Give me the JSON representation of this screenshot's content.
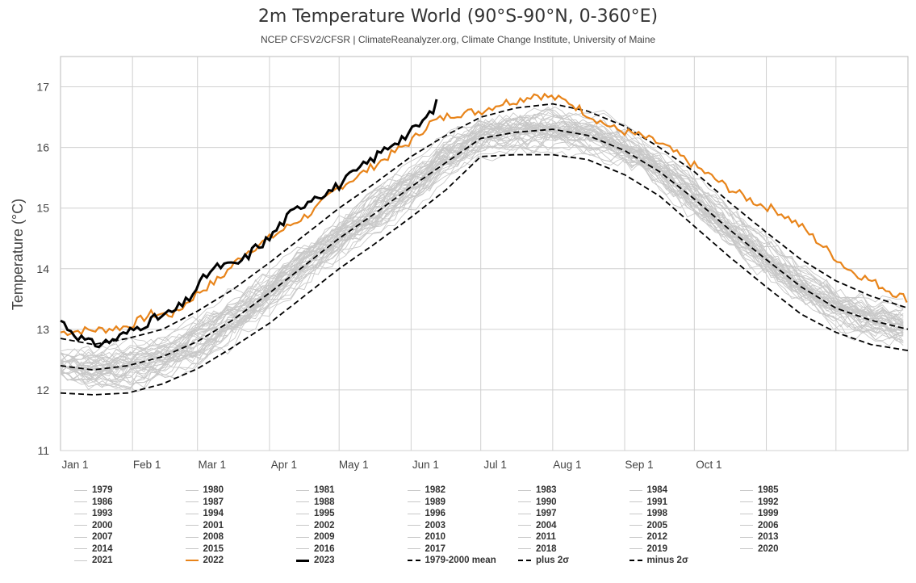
{
  "chart_data": {
    "type": "line",
    "title": "2m Temperature World (90°S-90°N, 0-360°E)",
    "subtitle": "NCEP CFSV2/CFSR | ClimateReanalyzer.org, Climate Change Institute, University of Maine",
    "ylabel": "Temperature (°C)",
    "xlabel": "",
    "ylim": [
      11,
      17.5
    ],
    "xlim": [
      1,
      366
    ],
    "yticks": [
      11,
      12,
      13,
      14,
      15,
      16,
      17
    ],
    "xticks": [
      {
        "day": 1,
        "label": "Jan 1"
      },
      {
        "day": 32,
        "label": "Feb 1"
      },
      {
        "day": 60,
        "label": "Mar 1"
      },
      {
        "day": 91,
        "label": "Apr 1"
      },
      {
        "day": 121,
        "label": "May 1"
      },
      {
        "day": 152,
        "label": "Jun 1"
      },
      {
        "day": 182,
        "label": "Jul 1"
      },
      {
        "day": 213,
        "label": "Aug 1"
      },
      {
        "day": 244,
        "label": "Sep 1"
      },
      {
        "day": 274,
        "label": "Oct 1"
      }
    ],
    "grid": true,
    "legend_position": "bottom",
    "colors": {
      "historical": "#c8c8c8",
      "y2022": "#e8841a",
      "y2023": "#000000",
      "stats": "#000000"
    },
    "historical_years": [
      "1979",
      "1980",
      "1981",
      "1982",
      "1983",
      "1984",
      "1985",
      "1986",
      "1987",
      "1988",
      "1989",
      "1990",
      "1991",
      "1992",
      "1993",
      "1994",
      "1995",
      "1996",
      "1997",
      "1998",
      "1999",
      "2000",
      "2001",
      "2002",
      "2003",
      "2004",
      "2005",
      "2006",
      "2007",
      "2008",
      "2009",
      "2010",
      "2011",
      "2012",
      "2013",
      "2014",
      "2015",
      "2016",
      "2017",
      "2018",
      "2019",
      "2020",
      "2021"
    ],
    "series": [
      {
        "name": "1979-2000 mean",
        "style": "dashed",
        "x": [
          1,
          15,
          30,
          45,
          60,
          75,
          91,
          106,
          121,
          136,
          152,
          167,
          182,
          197,
          213,
          228,
          244,
          259,
          274,
          289,
          305,
          320,
          335,
          350,
          366
        ],
        "y": [
          12.4,
          12.33,
          12.4,
          12.55,
          12.8,
          13.15,
          13.6,
          14.05,
          14.5,
          14.9,
          15.35,
          15.75,
          16.15,
          16.25,
          16.3,
          16.2,
          15.95,
          15.6,
          15.15,
          14.65,
          14.15,
          13.7,
          13.35,
          13.15,
          13.0
        ]
      },
      {
        "name": "plus 2σ",
        "style": "dashed",
        "x": [
          1,
          15,
          30,
          45,
          60,
          75,
          91,
          106,
          121,
          136,
          152,
          167,
          182,
          197,
          213,
          228,
          244,
          259,
          274,
          289,
          305,
          320,
          335,
          350,
          366
        ],
        "y": [
          12.85,
          12.75,
          12.85,
          13.0,
          13.3,
          13.65,
          14.1,
          14.55,
          15.0,
          15.4,
          15.85,
          16.2,
          16.5,
          16.65,
          16.72,
          16.6,
          16.35,
          16.0,
          15.6,
          15.1,
          14.6,
          14.15,
          13.8,
          13.55,
          13.35
        ]
      },
      {
        "name": "minus 2σ",
        "style": "dashed",
        "x": [
          1,
          15,
          30,
          45,
          60,
          75,
          91,
          106,
          121,
          136,
          152,
          167,
          182,
          197,
          213,
          228,
          244,
          259,
          274,
          289,
          305,
          320,
          335,
          350,
          366
        ],
        "y": [
          11.95,
          11.92,
          11.95,
          12.1,
          12.35,
          12.7,
          13.1,
          13.55,
          14.0,
          14.4,
          14.85,
          15.3,
          15.85,
          15.88,
          15.88,
          15.8,
          15.55,
          15.2,
          14.7,
          14.2,
          13.7,
          13.25,
          12.95,
          12.75,
          12.65
        ]
      },
      {
        "name": "2022",
        "style": "orange",
        "x": [
          1,
          10,
          20,
          30,
          40,
          50,
          60,
          70,
          80,
          91,
          100,
          110,
          121,
          130,
          140,
          152,
          160,
          170,
          182,
          190,
          200,
          205,
          213,
          220,
          230,
          240,
          250,
          260,
          270,
          280,
          290,
          300,
          310,
          320,
          330,
          340,
          350,
          360,
          366
        ],
        "y": [
          12.95,
          12.98,
          13.0,
          13.05,
          13.25,
          13.25,
          13.6,
          13.85,
          14.25,
          14.5,
          14.72,
          14.95,
          15.35,
          15.55,
          15.8,
          16.1,
          16.4,
          16.55,
          16.6,
          16.72,
          16.8,
          16.88,
          16.82,
          16.75,
          16.5,
          16.3,
          16.2,
          16.05,
          15.8,
          15.55,
          15.3,
          15.1,
          14.95,
          14.7,
          14.35,
          14.0,
          13.8,
          13.6,
          13.5
        ]
      },
      {
        "name": "2023",
        "style": "black",
        "x": [
          1,
          5,
          10,
          15,
          20,
          25,
          30,
          35,
          40,
          45,
          50,
          55,
          60,
          65,
          70,
          75,
          80,
          85,
          91,
          95,
          100,
          105,
          110,
          115,
          120,
          125,
          130,
          135,
          140,
          145,
          150,
          155,
          160,
          164
        ],
        "y": [
          13.15,
          13.0,
          12.85,
          12.75,
          12.78,
          12.85,
          12.95,
          13.05,
          13.15,
          13.22,
          13.3,
          13.45,
          13.7,
          13.95,
          14.05,
          14.05,
          14.15,
          14.35,
          14.5,
          14.7,
          14.9,
          15.05,
          15.2,
          15.25,
          15.35,
          15.5,
          15.65,
          15.8,
          15.95,
          16.1,
          16.2,
          16.35,
          16.55,
          16.78
        ]
      }
    ]
  },
  "legend": {
    "rows": [
      [
        "1979",
        "1980",
        "1981",
        "1982",
        "1983",
        "1984",
        "1985"
      ],
      [
        "1986",
        "1987",
        "1988",
        "1989",
        "1990",
        "1991",
        "1992"
      ],
      [
        "1993",
        "1994",
        "1995",
        "1996",
        "1997",
        "1998",
        "1999"
      ],
      [
        "2000",
        "2001",
        "2002",
        "2003",
        "2004",
        "2005",
        "2006"
      ],
      [
        "2007",
        "2008",
        "2009",
        "2010",
        "2011",
        "2012",
        "2013"
      ],
      [
        "2014",
        "2015",
        "2016",
        "2017",
        "2018",
        "2019",
        "2020"
      ],
      [
        "2021",
        "2022",
        "2023",
        "1979-2000 mean",
        "plus 2σ",
        "minus 2σ"
      ]
    ]
  }
}
